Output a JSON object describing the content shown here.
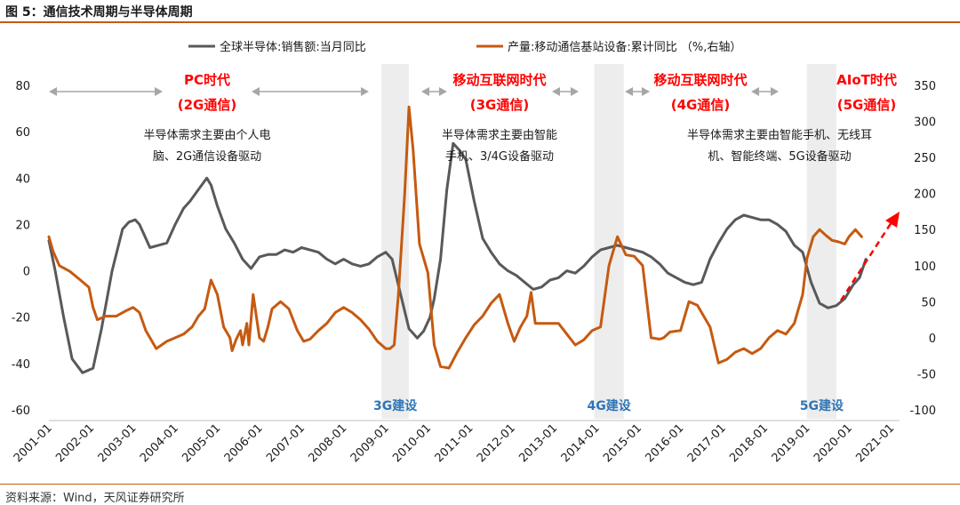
{
  "figure": {
    "title": "图 5：通信技术周期与半导体周期",
    "source": "资料来源：Wind，天风证券研究所"
  },
  "colors": {
    "semis": "#595959",
    "basestation": "#c55a11",
    "era_label": "#ff0000",
    "build_label": "#2e75b6",
    "shade": "#ededed",
    "arrow": "#a6a6a6",
    "rule": "#c55a11"
  },
  "chart_data": {
    "type": "line",
    "title": "通信技术周期与半导体周期",
    "xlabel": "",
    "ylabel": "",
    "x_ticks": [
      "2001-01",
      "2002-01",
      "2003-01",
      "2004-01",
      "2005-01",
      "2006-01",
      "2007-01",
      "2008-01",
      "2009-01",
      "2010-01",
      "2011-01",
      "2012-01",
      "2013-01",
      "2014-01",
      "2015-01",
      "2016-01",
      "2017-01",
      "2018-01",
      "2019-01",
      "2020-01",
      "2021-01"
    ],
    "x_range": [
      2001.0,
      2021.2
    ],
    "y_left": {
      "range": [
        -60,
        80
      ],
      "ticks": [
        -60,
        -40,
        -20,
        0,
        20,
        40,
        60,
        80
      ]
    },
    "y_right": {
      "range": [
        -100,
        350
      ],
      "ticks": [
        -100,
        -50,
        0,
        50,
        100,
        150,
        200,
        250,
        300,
        350
      ]
    },
    "grid": false,
    "legend_position": "top-center",
    "series": [
      {
        "name": "全球半导体:销售额:当月同比",
        "axis": "left",
        "color": "#595959",
        "x": [
          2001.0,
          2001.15,
          2001.35,
          2001.55,
          2001.8,
          2002.05,
          2002.25,
          2002.5,
          2002.75,
          2002.9,
          2003.05,
          2003.15,
          2003.4,
          2003.6,
          2003.8,
          2004.0,
          2004.2,
          2004.35,
          2004.55,
          2004.75,
          2004.85,
          2005.0,
          2005.2,
          2005.4,
          2005.6,
          2005.8,
          2006.0,
          2006.2,
          2006.4,
          2006.6,
          2006.8,
          2007.0,
          2007.2,
          2007.4,
          2007.6,
          2007.8,
          2008.0,
          2008.2,
          2008.4,
          2008.6,
          2008.8,
          2009.0,
          2009.15,
          2009.35,
          2009.55,
          2009.75,
          2009.9,
          2010.05,
          2010.15,
          2010.3,
          2010.45,
          2010.6,
          2010.75,
          2010.9,
          2011.1,
          2011.3,
          2011.5,
          2011.7,
          2011.9,
          2012.1,
          2012.3,
          2012.5,
          2012.7,
          2012.9,
          2013.1,
          2013.3,
          2013.5,
          2013.7,
          2013.9,
          2014.1,
          2014.3,
          2014.5,
          2014.7,
          2014.9,
          2015.1,
          2015.3,
          2015.5,
          2015.7,
          2015.9,
          2016.1,
          2016.3,
          2016.5,
          2016.7,
          2016.9,
          2017.1,
          2017.3,
          2017.5,
          2017.7,
          2017.9,
          2018.1,
          2018.3,
          2018.5,
          2018.7,
          2018.9,
          2019.1,
          2019.3,
          2019.5,
          2019.7,
          2019.9,
          2020.1,
          2020.25,
          2020.4
        ],
        "values": [
          13,
          0,
          -20,
          -38,
          -44,
          -42,
          -25,
          0,
          18,
          21,
          22,
          20,
          10,
          11,
          12,
          20,
          27,
          30,
          35,
          40,
          37,
          28,
          18,
          12,
          5,
          1,
          6,
          7,
          7,
          9,
          8,
          10,
          9,
          8,
          5,
          3,
          5,
          3,
          2,
          3,
          6,
          8,
          5,
          -10,
          -25,
          -29,
          -26,
          -20,
          -12,
          5,
          35,
          55,
          52,
          48,
          30,
          14,
          8,
          3,
          0,
          -2,
          -5,
          -8,
          -7,
          -4,
          -3,
          0,
          -1,
          2,
          6,
          9,
          10,
          11,
          10,
          9,
          8,
          6,
          3,
          -1,
          -3,
          -5,
          -6,
          -5,
          5,
          12,
          18,
          22,
          24,
          23,
          22,
          22,
          20,
          17,
          11,
          8,
          -5,
          -14,
          -16,
          -15,
          -12,
          -6,
          -3,
          5
        ]
      },
      {
        "name": "产量:移动通信基站设备:累计同比 （%,右轴）",
        "axis": "right",
        "color": "#c55a11",
        "x": [
          2001.0,
          2001.1,
          2001.25,
          2001.5,
          2001.75,
          2001.95,
          2002.05,
          2002.15,
          2002.35,
          2002.6,
          2002.85,
          2003.0,
          2003.15,
          2003.3,
          2003.55,
          2003.8,
          2004.0,
          2004.2,
          2004.4,
          2004.55,
          2004.7,
          2004.85,
          2005.0,
          2005.15,
          2005.3,
          2005.35,
          2005.45,
          2005.55,
          2005.6,
          2005.7,
          2005.75,
          2005.85,
          2006.0,
          2006.1,
          2006.2,
          2006.3,
          2006.5,
          2006.7,
          2006.9,
          2007.05,
          2007.2,
          2007.4,
          2007.6,
          2007.8,
          2008.0,
          2008.2,
          2008.4,
          2008.6,
          2008.8,
          2009.0,
          2009.1,
          2009.2,
          2009.3,
          2009.45,
          2009.55,
          2009.65,
          2009.8,
          2010.0,
          2010.15,
          2010.3,
          2010.5,
          2010.7,
          2010.9,
          2011.1,
          2011.3,
          2011.5,
          2011.7,
          2011.9,
          2012.05,
          2012.2,
          2012.35,
          2012.45,
          2012.55,
          2012.7,
          2012.9,
          2013.1,
          2013.3,
          2013.5,
          2013.7,
          2013.9,
          2014.1,
          2014.3,
          2014.5,
          2014.7,
          2014.9,
          2015.1,
          2015.3,
          2015.5,
          2015.6,
          2015.75,
          2016.0,
          2016.2,
          2016.4,
          2016.55,
          2016.7,
          2016.9,
          2017.1,
          2017.3,
          2017.5,
          2017.7,
          2017.9,
          2018.1,
          2018.3,
          2018.5,
          2018.7,
          2018.9,
          2019.0,
          2019.15,
          2019.3,
          2019.45,
          2019.6,
          2019.75,
          2019.9,
          2020.0,
          2020.15,
          2020.3
        ],
        "values": [
          140,
          120,
          100,
          92,
          80,
          70,
          42,
          25,
          30,
          30,
          38,
          42,
          35,
          10,
          -15,
          -5,
          0,
          5,
          15,
          30,
          40,
          80,
          60,
          15,
          0,
          -18,
          -2,
          10,
          -10,
          20,
          -10,
          60,
          0,
          -5,
          15,
          40,
          50,
          40,
          10,
          -5,
          -2,
          10,
          20,
          35,
          42,
          35,
          25,
          12,
          -5,
          -15,
          -15,
          -10,
          60,
          200,
          320,
          260,
          130,
          90,
          -10,
          -40,
          -42,
          -20,
          0,
          18,
          30,
          48,
          60,
          20,
          -5,
          15,
          30,
          63,
          20,
          20,
          20,
          20,
          5,
          -10,
          -3,
          10,
          15,
          100,
          140,
          115,
          113,
          100,
          0,
          -2,
          0,
          8,
          10,
          50,
          45,
          30,
          15,
          -35,
          -30,
          -20,
          -15,
          -22,
          -15,
          0,
          10,
          5,
          20,
          60,
          110,
          140,
          150,
          142,
          135,
          133,
          130,
          140,
          150,
          140
        ]
      }
    ],
    "annotations": {
      "eras": [
        {
          "line1": "PC时代",
          "line2": "(2G通信)",
          "desc1": "半导体需求主要由个人电",
          "desc2": "脑、2G通信设备驱动"
        },
        {
          "line1": "移动互联网时代",
          "line2": "(3G通信)",
          "desc1": "半导体需求主要由智能",
          "desc2": "手机、3/4G设备驱动"
        },
        {
          "line1": "移动互联网时代",
          "line2": "(4G通信)"
        },
        {
          "line1": "AIoT时代",
          "line2": "(5G通信)",
          "desc1": "半导体需求主要由智能手机、无线耳",
          "desc2": "机、智能终端、5G设备驱动"
        }
      ],
      "build_periods": [
        {
          "label": "3G建设",
          "range": [
            2008.9,
            2009.55
          ]
        },
        {
          "label": "4G建设",
          "range": [
            2013.95,
            2014.65
          ]
        },
        {
          "label": "5G建设",
          "range": [
            2019.0,
            2019.7
          ]
        }
      ]
    }
  }
}
